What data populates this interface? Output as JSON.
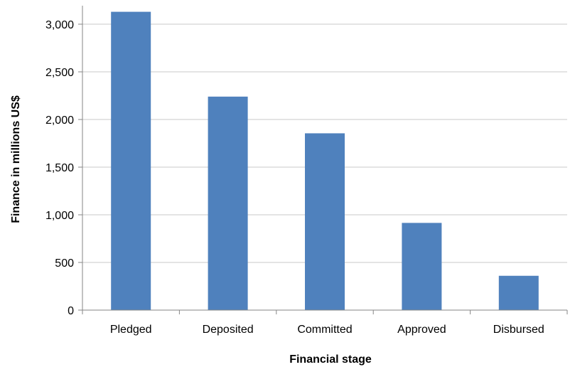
{
  "chart_data": {
    "type": "bar",
    "title": "",
    "xlabel": "Financial stage",
    "ylabel": "Finance in millions US$",
    "categories": [
      "Pledged",
      "Deposited",
      "Committed",
      "Approved",
      "Disbursed"
    ],
    "values": [
      3130,
      2240,
      1855,
      915,
      360
    ],
    "ylim": [
      0,
      3000
    ],
    "yticks": [
      0,
      500,
      1000,
      1500,
      2000,
      2500,
      3000
    ],
    "ytick_labels": [
      "0",
      "500",
      "1,000",
      "1,500",
      "2,000",
      "2,500",
      "3,000"
    ],
    "grid": true,
    "bar_color": "#4f81bd",
    "grid_color": "#c8c8c8",
    "axis_color": "#868686"
  }
}
